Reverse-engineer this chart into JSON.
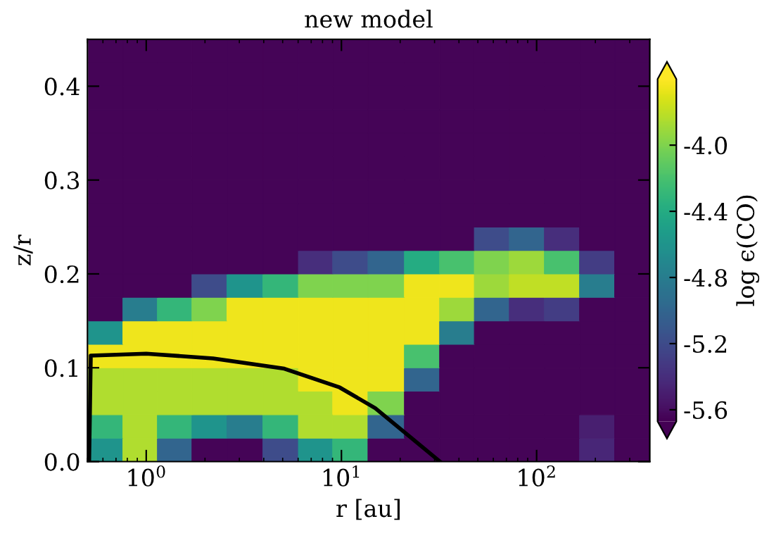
{
  "chart_data": {
    "type": "heatmap",
    "title": "new model",
    "xlabel": "r [au]",
    "ylabel": "z/r",
    "clabel": "log ϵ(CO)",
    "log": "x",
    "x": [
      0.62,
      0.93,
      1.4,
      2.1,
      3.2,
      4.9,
      7.4,
      11,
      17,
      26,
      39,
      59,
      89,
      135,
      204,
      309
    ],
    "y": [
      0.0125,
      0.0375,
      0.0625,
      0.0875,
      0.1125,
      0.1375,
      0.1625,
      0.1875,
      0.2125,
      0.2375,
      0.2625,
      0.2875,
      0.3125,
      0.3375,
      0.3625,
      0.3875,
      0.4125,
      0.4375
    ],
    "cells": [
      [
        -4.6,
        -3.85,
        -5.0,
        -5.65,
        -5.65,
        -5.2,
        -4.6,
        -4.3,
        -5.65,
        -5.65,
        -5.65,
        -5.65,
        -5.65,
        -5.65,
        -5.45,
        -5.65
      ],
      [
        -4.3,
        -3.85,
        -4.3,
        -4.6,
        -4.8,
        -4.3,
        -3.85,
        -3.85,
        -5.0,
        -5.65,
        -5.65,
        -5.65,
        -5.65,
        -5.65,
        -5.5,
        -5.65
      ],
      [
        -3.85,
        -3.85,
        -3.85,
        -3.85,
        -3.85,
        -3.85,
        -3.85,
        -3.65,
        -4.0,
        -5.65,
        -5.65,
        -5.65,
        -5.65,
        -5.65,
        -5.65,
        -5.65
      ],
      [
        -3.85,
        -3.85,
        -3.85,
        -3.85,
        -3.85,
        -3.85,
        -3.65,
        -3.65,
        -3.65,
        -5.0,
        -5.65,
        -5.65,
        -5.65,
        -5.65,
        -5.65,
        -5.65
      ],
      [
        -3.65,
        -3.65,
        -3.65,
        -3.65,
        -3.65,
        -3.65,
        -3.65,
        -3.65,
        -3.65,
        -4.2,
        -5.65,
        -5.65,
        -5.65,
        -5.65,
        -5.65,
        -5.65
      ],
      [
        -4.6,
        -3.65,
        -3.65,
        -3.65,
        -3.65,
        -3.65,
        -3.65,
        -3.65,
        -3.65,
        -3.65,
        -4.8,
        -5.65,
        -5.65,
        -5.65,
        -5.65,
        -5.65
      ],
      [
        -5.65,
        -4.8,
        -4.3,
        -4.0,
        -3.65,
        -3.65,
        -3.65,
        -3.65,
        -3.65,
        -3.65,
        -3.9,
        -5.0,
        -5.4,
        -5.3,
        -5.65,
        -5.65
      ],
      [
        -5.65,
        -5.65,
        -5.65,
        -5.2,
        -4.6,
        -4.3,
        -4.0,
        -4.0,
        -4.0,
        -3.65,
        -3.65,
        -3.9,
        -3.8,
        -3.8,
        -4.8,
        -5.65
      ],
      [
        -5.65,
        -5.65,
        -5.65,
        -5.65,
        -5.65,
        -5.65,
        -5.4,
        -5.2,
        -5.0,
        -4.4,
        -4.2,
        -4.0,
        -3.9,
        -4.2,
        -5.3,
        -5.65
      ],
      [
        -5.65,
        -5.65,
        -5.65,
        -5.65,
        -5.65,
        -5.65,
        -5.65,
        -5.65,
        -5.65,
        -5.65,
        -5.65,
        -5.2,
        -5.0,
        -5.4,
        -5.65,
        -5.65
      ],
      [
        -5.65,
        -5.65,
        -5.65,
        -5.65,
        -5.65,
        -5.65,
        -5.65,
        -5.65,
        -5.65,
        -5.65,
        -5.65,
        -5.65,
        -5.65,
        -5.65,
        -5.65,
        -5.65
      ],
      [
        -5.65,
        -5.65,
        -5.65,
        -5.65,
        -5.65,
        -5.65,
        -5.65,
        -5.65,
        -5.65,
        -5.65,
        -5.65,
        -5.65,
        -5.65,
        -5.65,
        -5.65,
        -5.65
      ],
      [
        -5.65,
        -5.65,
        -5.65,
        -5.65,
        -5.65,
        -5.65,
        -5.65,
        -5.65,
        -5.65,
        -5.65,
        -5.65,
        -5.65,
        -5.65,
        -5.65,
        -5.65,
        -5.65
      ],
      [
        -5.65,
        -5.65,
        -5.65,
        -5.65,
        -5.65,
        -5.65,
        -5.65,
        -5.65,
        -5.65,
        -5.65,
        -5.65,
        -5.65,
        -5.65,
        -5.65,
        -5.65,
        -5.65
      ],
      [
        -5.65,
        -5.65,
        -5.65,
        -5.65,
        -5.65,
        -5.65,
        -5.65,
        -5.65,
        -5.65,
        -5.65,
        -5.65,
        -5.65,
        -5.65,
        -5.65,
        -5.65,
        -5.65
      ],
      [
        -5.65,
        -5.65,
        -5.65,
        -5.65,
        -5.65,
        -5.65,
        -5.65,
        -5.65,
        -5.65,
        -5.65,
        -5.65,
        -5.65,
        -5.65,
        -5.65,
        -5.65,
        -5.65
      ],
      [
        -5.65,
        -5.65,
        -5.65,
        -5.65,
        -5.65,
        -5.65,
        -5.65,
        -5.65,
        -5.65,
        -5.65,
        -5.65,
        -5.65,
        -5.65,
        -5.65,
        -5.65,
        -5.65
      ],
      [
        -5.65,
        -5.65,
        -5.65,
        -5.65,
        -5.65,
        -5.65,
        -5.65,
        -5.65,
        -5.65,
        -5.65,
        -5.65,
        -5.65,
        -5.65,
        -5.65,
        -5.65,
        -5.65
      ]
    ],
    "clim": [
      -5.67,
      -3.6
    ],
    "cticks": [
      {
        "value": -4.0,
        "label": "-4.0"
      },
      {
        "value": -4.4,
        "label": "-4.4"
      },
      {
        "value": -4.8,
        "label": "-4.8"
      },
      {
        "value": -5.2,
        "label": "-5.2"
      },
      {
        "value": -5.6,
        "label": "-5.6"
      }
    ],
    "xlim": [
      0.5,
      380
    ],
    "ylim": [
      0,
      0.45
    ],
    "xticks": [
      {
        "value": 1,
        "label": "10$^{0}$"
      },
      {
        "value": 10,
        "label": "10$^{1}$"
      },
      {
        "value": 100,
        "label": "10$^{2}$"
      }
    ],
    "yticks": [
      {
        "value": 0,
        "label": "0.0"
      },
      0.1,
      0.2,
      0.3,
      0.4
    ],
    "series": [
      {
        "type": "line",
        "color": "#000000",
        "x": [
          0.51,
          0.52,
          1,
          2.2,
          5.1,
          9.8,
          14.9,
          22.3,
          32
        ],
        "values": [
          0.0,
          0.113,
          0.115,
          0.11,
          0.099,
          0.079,
          0.057,
          0.027,
          0.0
        ]
      }
    ],
    "grid": false,
    "legend": false
  }
}
